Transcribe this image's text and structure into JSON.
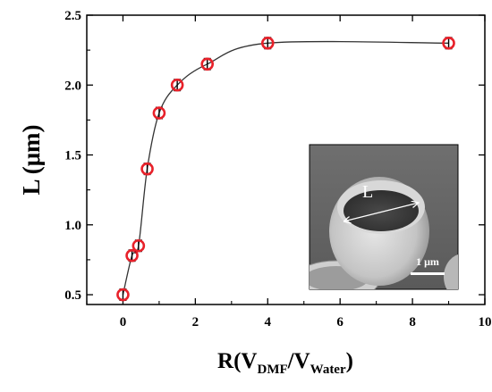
{
  "chart_data": {
    "type": "scatter",
    "ylabel": "L (μm)",
    "xlabel": {
      "prefix": "R(V",
      "sub1": "DMF",
      "mid": "/V",
      "sub2": "Water",
      "suffix": ")"
    },
    "xlim": [
      -1,
      10
    ],
    "ylim": [
      0.43,
      2.5
    ],
    "x_ticks": [
      0,
      2,
      4,
      6,
      8,
      10
    ],
    "y_ticks": [
      0.5,
      1.0,
      1.5,
      2.0,
      2.5
    ],
    "x_tick_labels": [
      "0",
      "2",
      "4",
      "6",
      "8",
      "10"
    ],
    "y_tick_labels": [
      "0.5",
      "1.0",
      "1.5",
      "2.0",
      "2.5"
    ],
    "grid": false,
    "series": [
      {
        "x": [
          0,
          0.25,
          0.43,
          0.67,
          1.0,
          1.5,
          2.33,
          4.0,
          9.0
        ],
        "y": [
          0.5,
          0.78,
          0.85,
          1.4,
          1.8,
          2.0,
          2.15,
          2.3,
          2.3
        ],
        "error": [
          0.04,
          0.04,
          0.04,
          0.04,
          0.04,
          0.04,
          0.04,
          0.04,
          0.04
        ],
        "marker_color": "#e8212a",
        "fit_line_color": "#333333"
      }
    ],
    "inset": {
      "label_L": "L",
      "scale_bar_label": "1 μm"
    }
  }
}
